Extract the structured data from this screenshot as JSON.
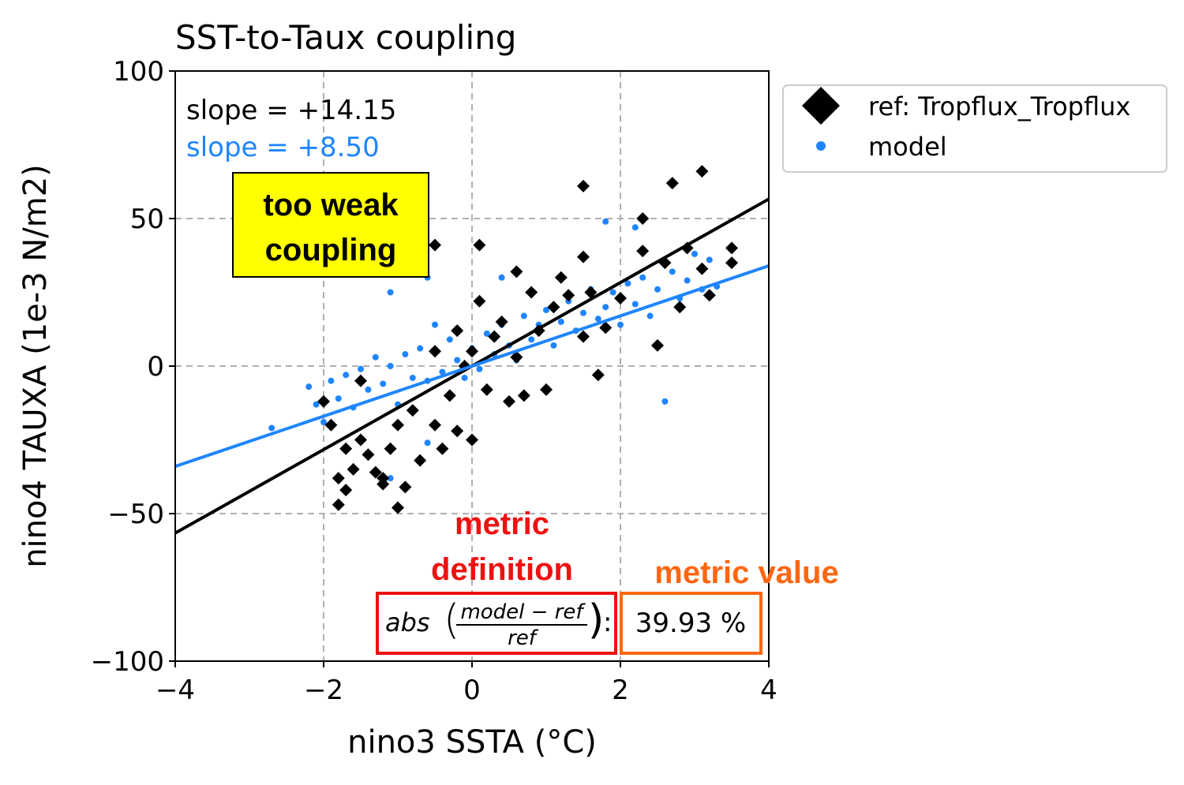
{
  "chart_data": {
    "type": "scatter",
    "title": "SST-to-Taux coupling",
    "xlabel": "nino3 SSTA (°C)",
    "ylabel": "nino4 TAUXA (1e-3 N/m2)",
    "xlim": [
      -4,
      4
    ],
    "ylim": [
      -100,
      100
    ],
    "xticks": [
      -4,
      -2,
      0,
      2,
      4
    ],
    "xtick_labels": [
      "−4",
      "−2",
      "0",
      "2",
      "4"
    ],
    "yticks": [
      -100,
      -50,
      0,
      50,
      100
    ],
    "ytick_labels": [
      "−100",
      "−50",
      "0",
      "50",
      "100"
    ],
    "grid": true,
    "legend_position": "outside-right",
    "series": [
      {
        "name": "ref: Tropflux_Tropflux",
        "marker": "diamond",
        "color": "#000000",
        "slope": 14.15,
        "slope_label": "slope = +14.15",
        "points": [
          [
            -2.0,
            -12
          ],
          [
            -1.9,
            -20
          ],
          [
            -1.8,
            -38
          ],
          [
            -1.8,
            -47
          ],
          [
            -1.7,
            -42
          ],
          [
            -1.7,
            -28
          ],
          [
            -1.6,
            -35
          ],
          [
            -1.5,
            -25
          ],
          [
            -1.5,
            -5
          ],
          [
            -1.4,
            -30
          ],
          [
            -1.3,
            -36
          ],
          [
            -1.2,
            -38
          ],
          [
            -1.1,
            -28
          ],
          [
            -1.0,
            -48
          ],
          [
            -1.0,
            -20
          ],
          [
            -0.9,
            -41
          ],
          [
            -0.8,
            -15
          ],
          [
            -0.7,
            -32
          ],
          [
            -0.5,
            5
          ],
          [
            -0.5,
            -20
          ],
          [
            -0.4,
            -28
          ],
          [
            -0.3,
            -10
          ],
          [
            -0.2,
            12
          ],
          [
            -0.2,
            -22
          ],
          [
            -0.1,
            0
          ],
          [
            0.0,
            -25
          ],
          [
            0.0,
            5
          ],
          [
            0.1,
            22
          ],
          [
            0.2,
            -8
          ],
          [
            0.3,
            10
          ],
          [
            0.4,
            15
          ],
          [
            0.5,
            -12
          ],
          [
            0.6,
            3
          ],
          [
            0.6,
            32
          ],
          [
            0.7,
            -10
          ],
          [
            0.8,
            25
          ],
          [
            0.9,
            12
          ],
          [
            1.0,
            -8
          ],
          [
            1.1,
            20
          ],
          [
            1.2,
            30
          ],
          [
            1.3,
            24
          ],
          [
            1.5,
            10
          ],
          [
            1.5,
            37
          ],
          [
            1.5,
            61
          ],
          [
            1.6,
            25
          ],
          [
            1.7,
            -3
          ],
          [
            1.8,
            13
          ],
          [
            2.0,
            23
          ],
          [
            2.3,
            50
          ],
          [
            2.3,
            39
          ],
          [
            2.5,
            7
          ],
          [
            2.6,
            35
          ],
          [
            2.7,
            62
          ],
          [
            2.8,
            20
          ],
          [
            2.9,
            40
          ],
          [
            3.1,
            66
          ],
          [
            3.1,
            33
          ],
          [
            3.2,
            24
          ],
          [
            3.5,
            40
          ],
          [
            3.5,
            35
          ],
          [
            -1.2,
            -40
          ],
          [
            -0.5,
            41
          ],
          [
            0.1,
            41
          ]
        ]
      },
      {
        "name": "model",
        "marker": "dot",
        "color": "#1f85ff",
        "slope": 8.5,
        "slope_label": "slope = +8.50",
        "points": [
          [
            -2.7,
            -21
          ],
          [
            -2.2,
            -7
          ],
          [
            -2.1,
            -13
          ],
          [
            -2.0,
            -19
          ],
          [
            -1.9,
            -5
          ],
          [
            -1.8,
            -11
          ],
          [
            -1.7,
            -3
          ],
          [
            -1.6,
            -14
          ],
          [
            -1.5,
            -1
          ],
          [
            -1.4,
            -8
          ],
          [
            -1.3,
            3
          ],
          [
            -1.2,
            -6
          ],
          [
            -1.1,
            0
          ],
          [
            -1.0,
            -13
          ],
          [
            -0.9,
            4
          ],
          [
            -0.8,
            -4
          ],
          [
            -0.7,
            6
          ],
          [
            -0.6,
            -5
          ],
          [
            -0.5,
            14
          ],
          [
            -0.4,
            -2
          ],
          [
            -0.3,
            9
          ],
          [
            -0.2,
            2
          ],
          [
            -0.1,
            -4
          ],
          [
            0.0,
            6
          ],
          [
            0.1,
            -1
          ],
          [
            0.2,
            11
          ],
          [
            0.3,
            4
          ],
          [
            0.4,
            14
          ],
          [
            0.5,
            7
          ],
          [
            0.6,
            2
          ],
          [
            0.7,
            17
          ],
          [
            0.8,
            9
          ],
          [
            0.9,
            14
          ],
          [
            1.0,
            19
          ],
          [
            1.1,
            7
          ],
          [
            1.2,
            15
          ],
          [
            1.3,
            22
          ],
          [
            1.4,
            12
          ],
          [
            1.5,
            18
          ],
          [
            1.6,
            26
          ],
          [
            1.7,
            16
          ],
          [
            1.8,
            20
          ],
          [
            1.9,
            25
          ],
          [
            2.0,
            14
          ],
          [
            2.1,
            28
          ],
          [
            2.2,
            21
          ],
          [
            2.3,
            30
          ],
          [
            2.4,
            17
          ],
          [
            2.5,
            26
          ],
          [
            2.6,
            -12
          ],
          [
            2.7,
            32
          ],
          [
            2.8,
            23
          ],
          [
            2.9,
            29
          ],
          [
            3.0,
            38
          ],
          [
            3.1,
            26
          ],
          [
            3.2,
            36
          ],
          [
            3.3,
            27
          ],
          [
            -0.6,
            30
          ],
          [
            -1.1,
            25
          ],
          [
            0.4,
            30
          ],
          [
            1.8,
            49
          ],
          [
            2.2,
            47
          ],
          [
            -1.1,
            -38
          ],
          [
            -0.6,
            -26
          ]
        ]
      }
    ],
    "annotations": {
      "callout_weak": [
        "too weak",
        "coupling"
      ],
      "metric_definition_label": [
        "metric",
        "definition"
      ],
      "metric_value_label": "metric value",
      "metric_formula": {
        "prefix": "abs",
        "numerator": "model − ref",
        "denominator": "ref",
        "separator": ":"
      },
      "metric_value": "39.93 %"
    }
  },
  "colors": {
    "ref": "#000000",
    "model": "#1f85ff",
    "callout_bg": "#ffff00",
    "definition_red": "#ee1111",
    "value_orange": "#ff6611",
    "grid": "#b0b0b0"
  }
}
